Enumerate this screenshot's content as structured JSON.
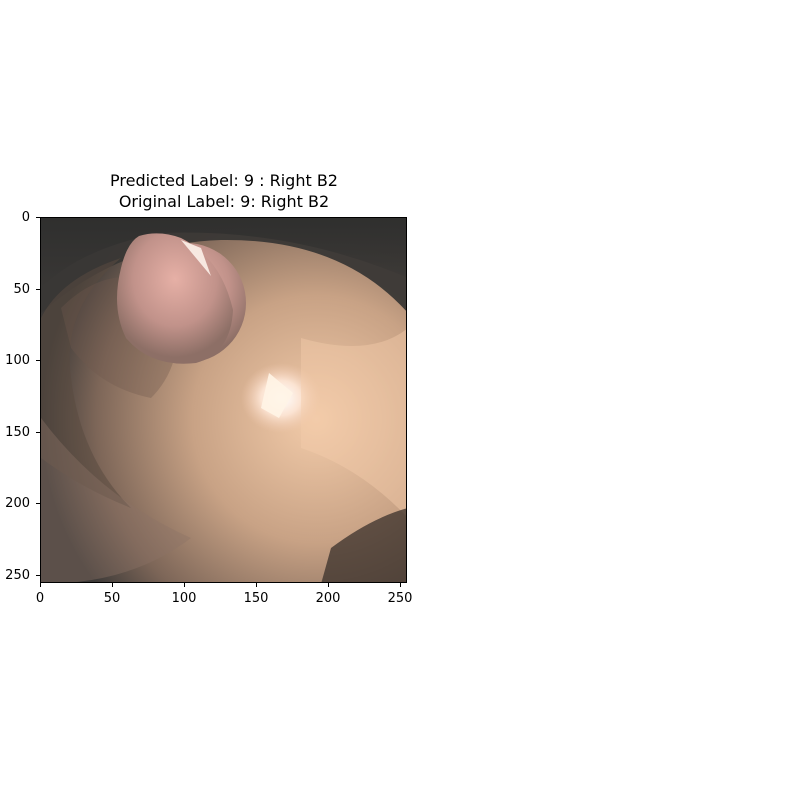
{
  "figure": {
    "title_line1": "Predicted Label: 9 : Right B2",
    "title_line2": "Original Label: 9: Right B2"
  },
  "image": {
    "description_icon": "endoscopy-airway-image"
  },
  "axes": {
    "x_ticks": [
      "0",
      "50",
      "100",
      "150",
      "200",
      "250"
    ],
    "y_ticks": [
      "0",
      "50",
      "100",
      "150",
      "200",
      "250"
    ]
  }
}
